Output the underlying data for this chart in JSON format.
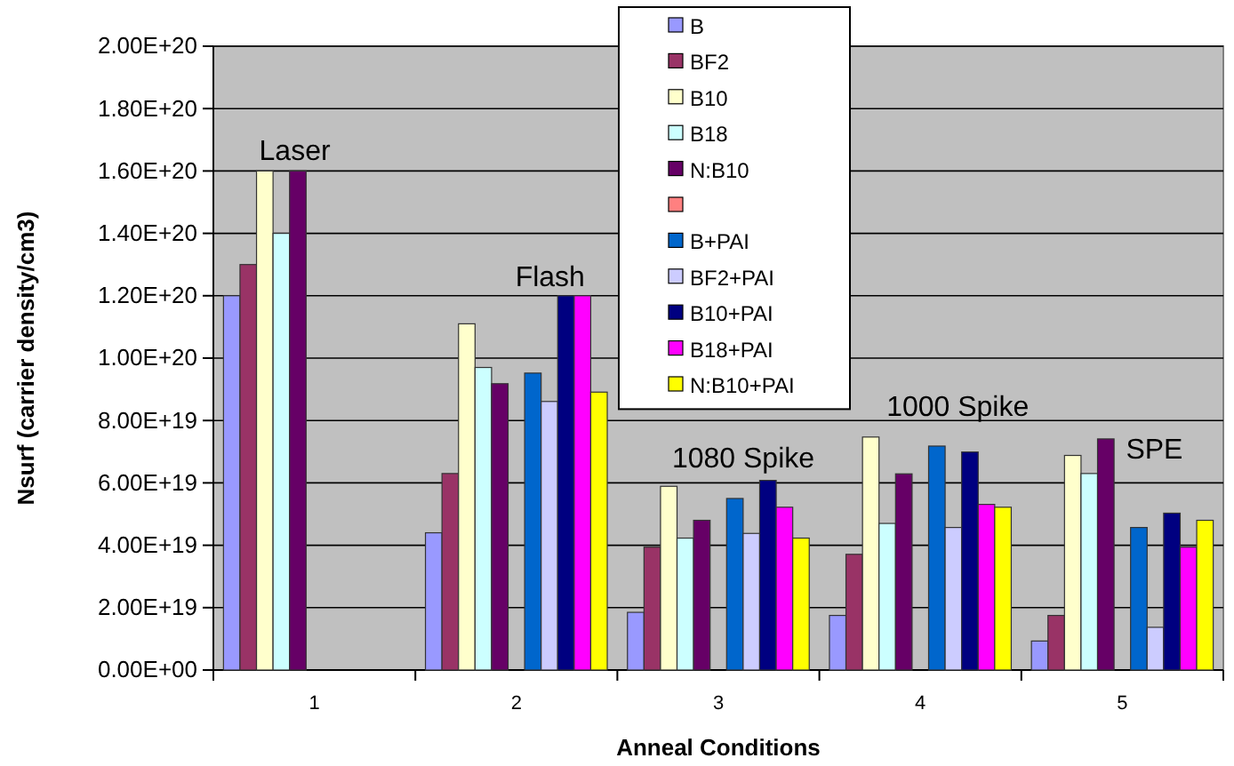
{
  "chart_data": {
    "type": "bar",
    "xlabel": "Anneal Conditions",
    "ylabel": "Nsurf (carrier density/cm3)",
    "categories": [
      "1",
      "2",
      "3",
      "4",
      "5"
    ],
    "ylim": [
      0,
      2e+20
    ],
    "yticks": [
      {
        "value": 0,
        "label": "0.00E+00"
      },
      {
        "value": 2e+19,
        "label": "2.00E+19"
      },
      {
        "value": 4e+19,
        "label": "4.00E+19"
      },
      {
        "value": 6e+19,
        "label": "6.00E+19"
      },
      {
        "value": 8e+19,
        "label": "8.00E+19"
      },
      {
        "value": 1e+20,
        "label": "1.00E+20"
      },
      {
        "value": 1.2e+20,
        "label": "1.20E+20"
      },
      {
        "value": 1.4e+20,
        "label": "1.40E+20"
      },
      {
        "value": 1.6e+20,
        "label": "1.60E+20"
      },
      {
        "value": 1.8e+20,
        "label": "1.80E+20"
      },
      {
        "value": 2e+20,
        "label": "2.00E+20"
      }
    ],
    "grid": "y",
    "legend": "top",
    "series": [
      {
        "name": "B",
        "color": "#9999ff",
        "values": [
          1.2e+20,
          4.4e+19,
          1.85e+19,
          1.75e+19,
          9.3e+18
        ]
      },
      {
        "name": "BF2",
        "color": "#993366",
        "values": [
          1.3e+20,
          6.3e+19,
          3.94e+19,
          3.71e+19,
          1.75e+19
        ]
      },
      {
        "name": "B10",
        "color": "#ffffcc",
        "values": [
          1.6e+20,
          1.11e+20,
          5.89e+19,
          7.47e+19,
          6.88e+19
        ]
      },
      {
        "name": "B18",
        "color": "#ccffff",
        "values": [
          1.4e+20,
          9.7e+19,
          4.23e+19,
          4.7e+19,
          6.3e+19
        ]
      },
      {
        "name": "N:B10",
        "color": "#660066",
        "values": [
          1.6e+20,
          9.18e+19,
          4.8e+19,
          6.29e+19,
          7.41e+19
        ]
      },
      {
        "color": "#ff8080",
        "values": [
          null,
          null,
          null,
          null,
          null
        ]
      },
      {
        "name": "B+PAI",
        "color": "#0066cc",
        "values": [
          null,
          9.52e+19,
          5.5e+19,
          7.18e+19,
          4.57e+19
        ]
      },
      {
        "name": "BF2+PAI",
        "color": "#ccccff",
        "values": [
          null,
          8.61e+19,
          4.38e+19,
          4.57e+19,
          1.37e+19
        ]
      },
      {
        "name": "B10+PAI",
        "color": "#000080",
        "values": [
          null,
          1.2e+20,
          6.08e+19,
          6.99e+19,
          5.03e+19
        ]
      },
      {
        "name": "B18+PAI",
        "color": "#ff00ff",
        "values": [
          null,
          1.2e+20,
          5.22e+19,
          5.31e+19,
          3.94e+19
        ]
      },
      {
        "name": "N:B10+PAI",
        "color": "#ffff00",
        "values": [
          null,
          8.91e+19,
          4.23e+19,
          5.22e+19,
          4.8e+19
        ]
      }
    ],
    "annotations": [
      "Laser",
      "Flash",
      "1080 Spike",
      "1000 Spike",
      "SPE"
    ]
  }
}
